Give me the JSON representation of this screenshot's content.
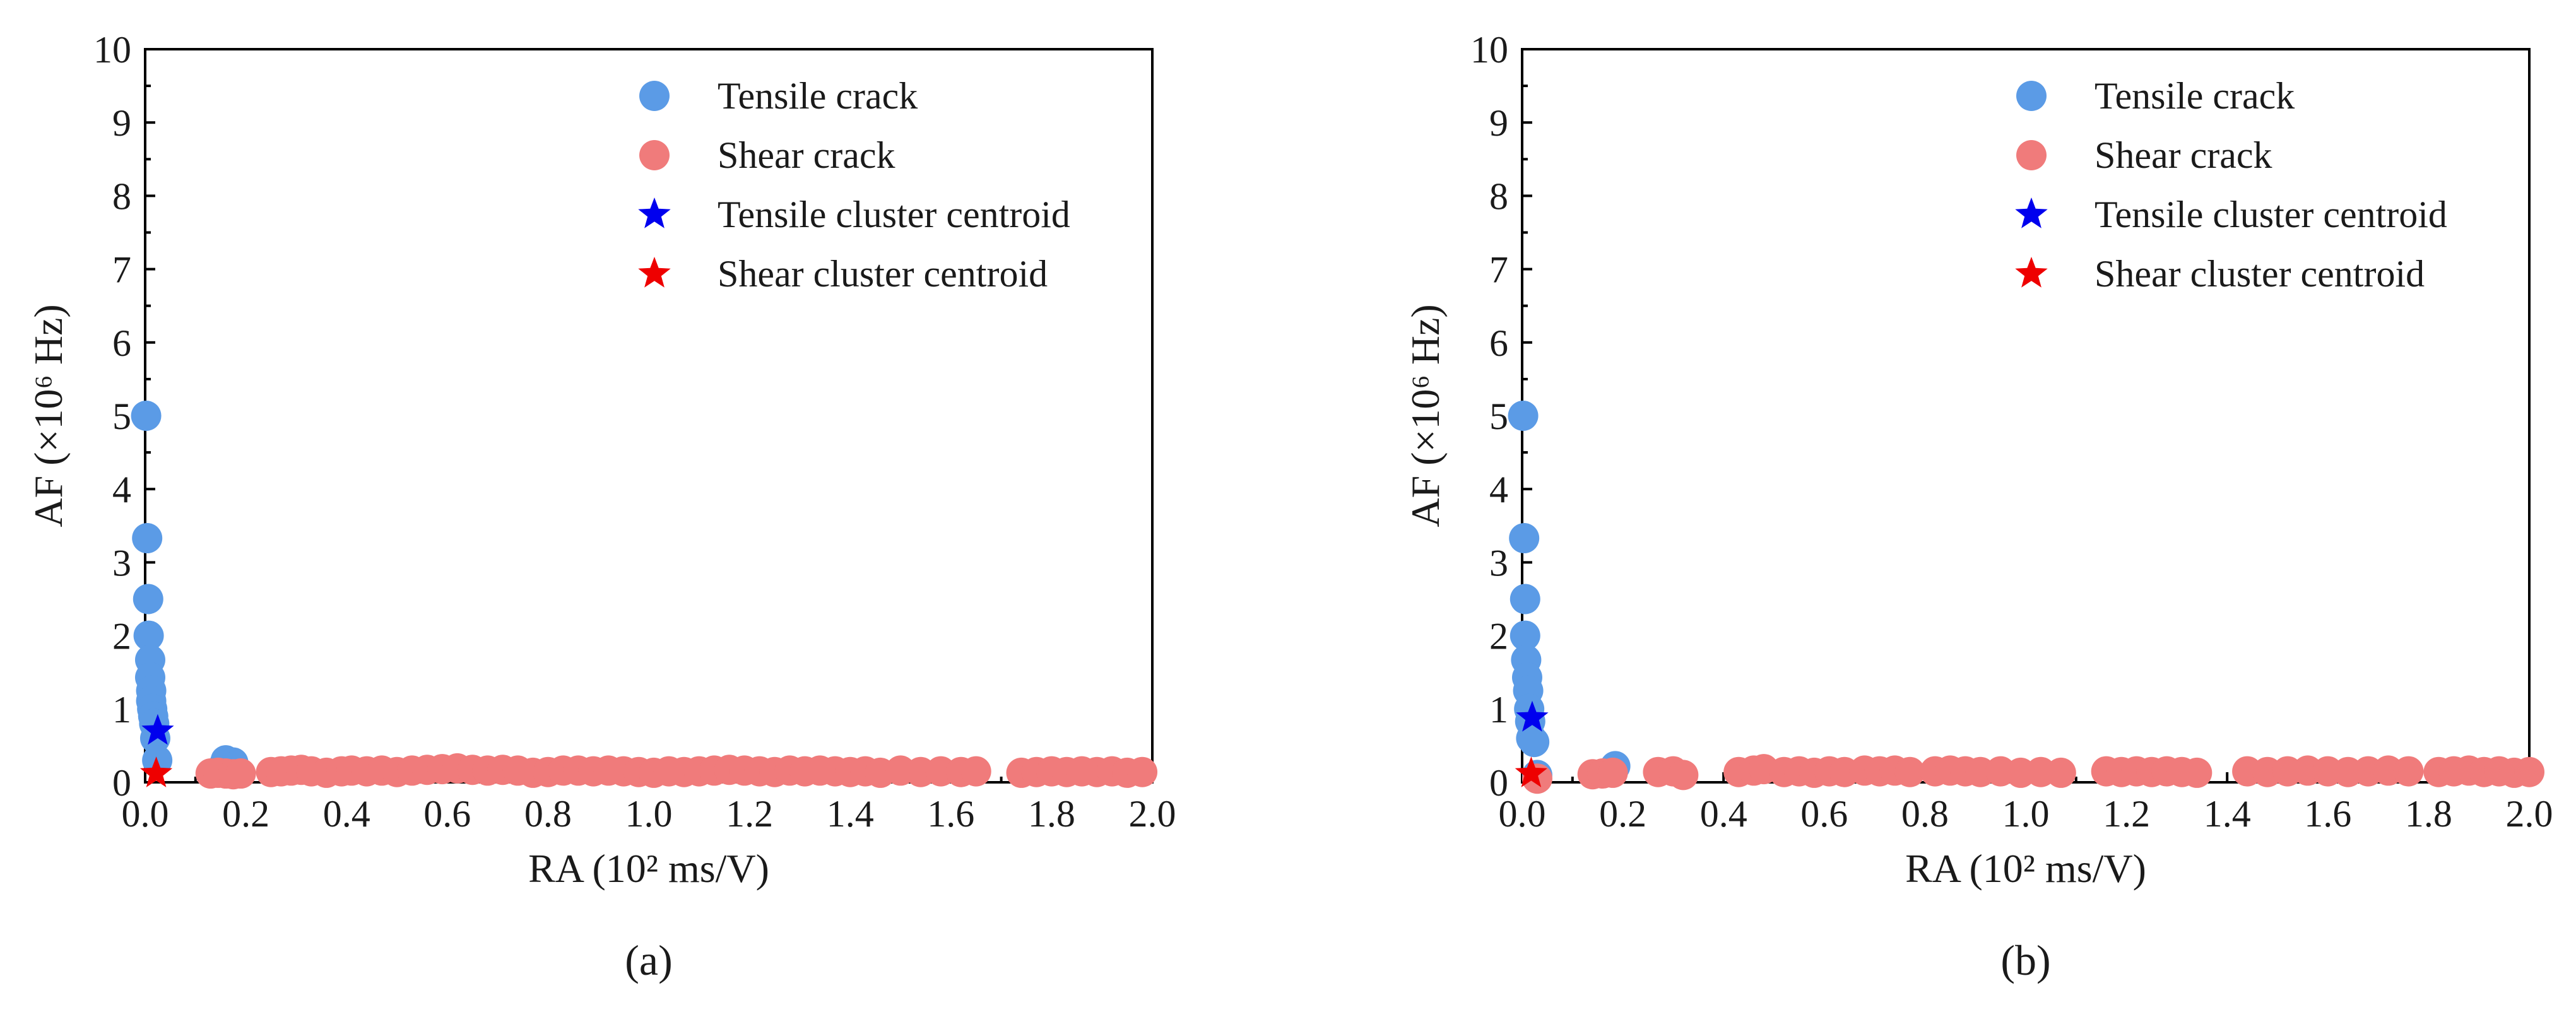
{
  "colors": {
    "tensile": "#5b9be6",
    "shear": "#f07b7b",
    "tensile_centroid": "#0000ee",
    "shear_centroid": "#ee0000"
  },
  "chart_data": [
    {
      "type": "scatter",
      "panel_label": "(a)",
      "xlabel": "RA (10² ms/V)",
      "ylabel": "AF (×10⁶ Hz)",
      "xlim": [
        0,
        2.0
      ],
      "ylim": [
        0,
        10
      ],
      "xticks": [
        "0.0",
        "0.2",
        "0.4",
        "0.6",
        "0.8",
        "1.0",
        "1.2",
        "1.4",
        "1.6",
        "1.8",
        "2.0"
      ],
      "yticks": [
        "0",
        "1",
        "2",
        "3",
        "4",
        "5",
        "6",
        "7",
        "8",
        "9",
        "10"
      ],
      "grid": false,
      "legend_position": "top-right",
      "series": [
        {
          "name": "Tensile crack",
          "marker": "circle",
          "points": [
            [
              0.002,
              5.0
            ],
            [
              0.004,
              3.33
            ],
            [
              0.006,
              2.5
            ],
            [
              0.007,
              2.0
            ],
            [
              0.01,
              1.67
            ],
            [
              0.01,
              1.43
            ],
            [
              0.012,
              1.25
            ],
            [
              0.012,
              1.11
            ],
            [
              0.014,
              1.0
            ],
            [
              0.016,
              0.9
            ],
            [
              0.018,
              0.8
            ],
            [
              0.02,
              0.6
            ],
            [
              0.024,
              0.3
            ],
            [
              0.16,
              0.3
            ],
            [
              0.165,
              0.25
            ],
            [
              0.17,
              0.2
            ],
            [
              0.175,
              0.27
            ],
            [
              0.155,
              0.22
            ]
          ]
        },
        {
          "name": "Shear crack",
          "marker": "circle",
          "points": [
            [
              0.13,
              0.12
            ],
            [
              0.145,
              0.13
            ],
            [
              0.16,
              0.12
            ],
            [
              0.175,
              0.11
            ],
            [
              0.19,
              0.12
            ],
            [
              0.25,
              0.14
            ],
            [
              0.27,
              0.15
            ],
            [
              0.29,
              0.16
            ],
            [
              0.31,
              0.17
            ],
            [
              0.33,
              0.15
            ],
            [
              0.36,
              0.13
            ],
            [
              0.39,
              0.15
            ],
            [
              0.41,
              0.16
            ],
            [
              0.44,
              0.15
            ],
            [
              0.47,
              0.16
            ],
            [
              0.5,
              0.14
            ],
            [
              0.53,
              0.16
            ],
            [
              0.56,
              0.17
            ],
            [
              0.59,
              0.18
            ],
            [
              0.62,
              0.19
            ],
            [
              0.65,
              0.17
            ],
            [
              0.68,
              0.16
            ],
            [
              0.71,
              0.17
            ],
            [
              0.74,
              0.16
            ],
            [
              0.77,
              0.13
            ],
            [
              0.8,
              0.14
            ],
            [
              0.83,
              0.16
            ],
            [
              0.86,
              0.16
            ],
            [
              0.89,
              0.15
            ],
            [
              0.92,
              0.16
            ],
            [
              0.95,
              0.15
            ],
            [
              0.98,
              0.14
            ],
            [
              1.01,
              0.13
            ],
            [
              1.04,
              0.15
            ],
            [
              1.07,
              0.14
            ],
            [
              1.1,
              0.15
            ],
            [
              1.13,
              0.16
            ],
            [
              1.16,
              0.17
            ],
            [
              1.19,
              0.16
            ],
            [
              1.22,
              0.15
            ],
            [
              1.25,
              0.14
            ],
            [
              1.28,
              0.16
            ],
            [
              1.31,
              0.15
            ],
            [
              1.34,
              0.16
            ],
            [
              1.37,
              0.15
            ],
            [
              1.4,
              0.14
            ],
            [
              1.43,
              0.15
            ],
            [
              1.46,
              0.13
            ],
            [
              1.5,
              0.16
            ],
            [
              1.54,
              0.14
            ],
            [
              1.58,
              0.15
            ],
            [
              1.62,
              0.14
            ],
            [
              1.65,
              0.15
            ],
            [
              1.74,
              0.13
            ],
            [
              1.77,
              0.14
            ],
            [
              1.8,
              0.15
            ],
            [
              1.83,
              0.14
            ],
            [
              1.86,
              0.15
            ],
            [
              1.89,
              0.14
            ],
            [
              1.92,
              0.15
            ],
            [
              1.95,
              0.13
            ],
            [
              1.98,
              0.14
            ]
          ]
        },
        {
          "name": "Tensile cluster centroid",
          "marker": "star",
          "points": [
            [
              0.025,
              0.7
            ]
          ]
        },
        {
          "name": "Shear cluster centroid",
          "marker": "star",
          "points": [
            [
              0.022,
              0.12
            ]
          ]
        }
      ]
    },
    {
      "type": "scatter",
      "panel_label": "(b)",
      "xlabel": "RA (10² ms/V)",
      "ylabel": "AF (×10⁶ Hz)",
      "xlim": [
        0,
        2.0
      ],
      "ylim": [
        0,
        10
      ],
      "xticks": [
        "0.0",
        "0.2",
        "0.4",
        "0.6",
        "0.8",
        "1.0",
        "1.2",
        "1.4",
        "1.6",
        "1.8",
        "2.0"
      ],
      "yticks": [
        "0",
        "1",
        "2",
        "3",
        "4",
        "5",
        "6",
        "7",
        "8",
        "9",
        "10"
      ],
      "grid": false,
      "legend_position": "top-right",
      "series": [
        {
          "name": "Tensile crack",
          "marker": "circle",
          "points": [
            [
              0.002,
              5.0
            ],
            [
              0.004,
              3.33
            ],
            [
              0.006,
              2.5
            ],
            [
              0.006,
              2.0
            ],
            [
              0.008,
              1.67
            ],
            [
              0.01,
              1.43
            ],
            [
              0.012,
              1.25
            ],
            [
              0.014,
              1.0
            ],
            [
              0.016,
              0.83
            ],
            [
              0.018,
              0.6
            ],
            [
              0.024,
              0.55
            ],
            [
              0.03,
              0.1
            ],
            [
              0.185,
              0.22
            ]
          ]
        },
        {
          "name": "Shear crack",
          "marker": "circle",
          "points": [
            [
              0.03,
              0.05
            ],
            [
              0.14,
              0.11
            ],
            [
              0.16,
              0.12
            ],
            [
              0.18,
              0.13
            ],
            [
              0.27,
              0.14
            ],
            [
              0.3,
              0.15
            ],
            [
              0.32,
              0.1
            ],
            [
              0.43,
              0.14
            ],
            [
              0.46,
              0.16
            ],
            [
              0.48,
              0.18
            ],
            [
              0.52,
              0.14
            ],
            [
              0.55,
              0.15
            ],
            [
              0.58,
              0.13
            ],
            [
              0.61,
              0.15
            ],
            [
              0.64,
              0.14
            ],
            [
              0.68,
              0.16
            ],
            [
              0.71,
              0.15
            ],
            [
              0.74,
              0.16
            ],
            [
              0.77,
              0.14
            ],
            [
              0.82,
              0.15
            ],
            [
              0.85,
              0.16
            ],
            [
              0.88,
              0.15
            ],
            [
              0.91,
              0.14
            ],
            [
              0.95,
              0.15
            ],
            [
              0.99,
              0.13
            ],
            [
              1.03,
              0.14
            ],
            [
              1.07,
              0.13
            ],
            [
              1.16,
              0.15
            ],
            [
              1.19,
              0.14
            ],
            [
              1.22,
              0.15
            ],
            [
              1.25,
              0.14
            ],
            [
              1.28,
              0.15
            ],
            [
              1.31,
              0.14
            ],
            [
              1.34,
              0.13
            ],
            [
              1.44,
              0.15
            ],
            [
              1.48,
              0.14
            ],
            [
              1.52,
              0.15
            ],
            [
              1.56,
              0.16
            ],
            [
              1.6,
              0.15
            ],
            [
              1.64,
              0.14
            ],
            [
              1.68,
              0.15
            ],
            [
              1.72,
              0.16
            ],
            [
              1.76,
              0.15
            ],
            [
              1.82,
              0.14
            ],
            [
              1.85,
              0.15
            ],
            [
              1.88,
              0.16
            ],
            [
              1.91,
              0.14
            ],
            [
              1.94,
              0.15
            ],
            [
              1.97,
              0.13
            ],
            [
              2.0,
              0.14
            ]
          ]
        },
        {
          "name": "Tensile cluster centroid",
          "marker": "star",
          "points": [
            [
              0.02,
              0.88
            ]
          ]
        },
        {
          "name": "Shear cluster centroid",
          "marker": "star",
          "points": [
            [
              0.018,
              0.12
            ]
          ]
        }
      ]
    }
  ]
}
